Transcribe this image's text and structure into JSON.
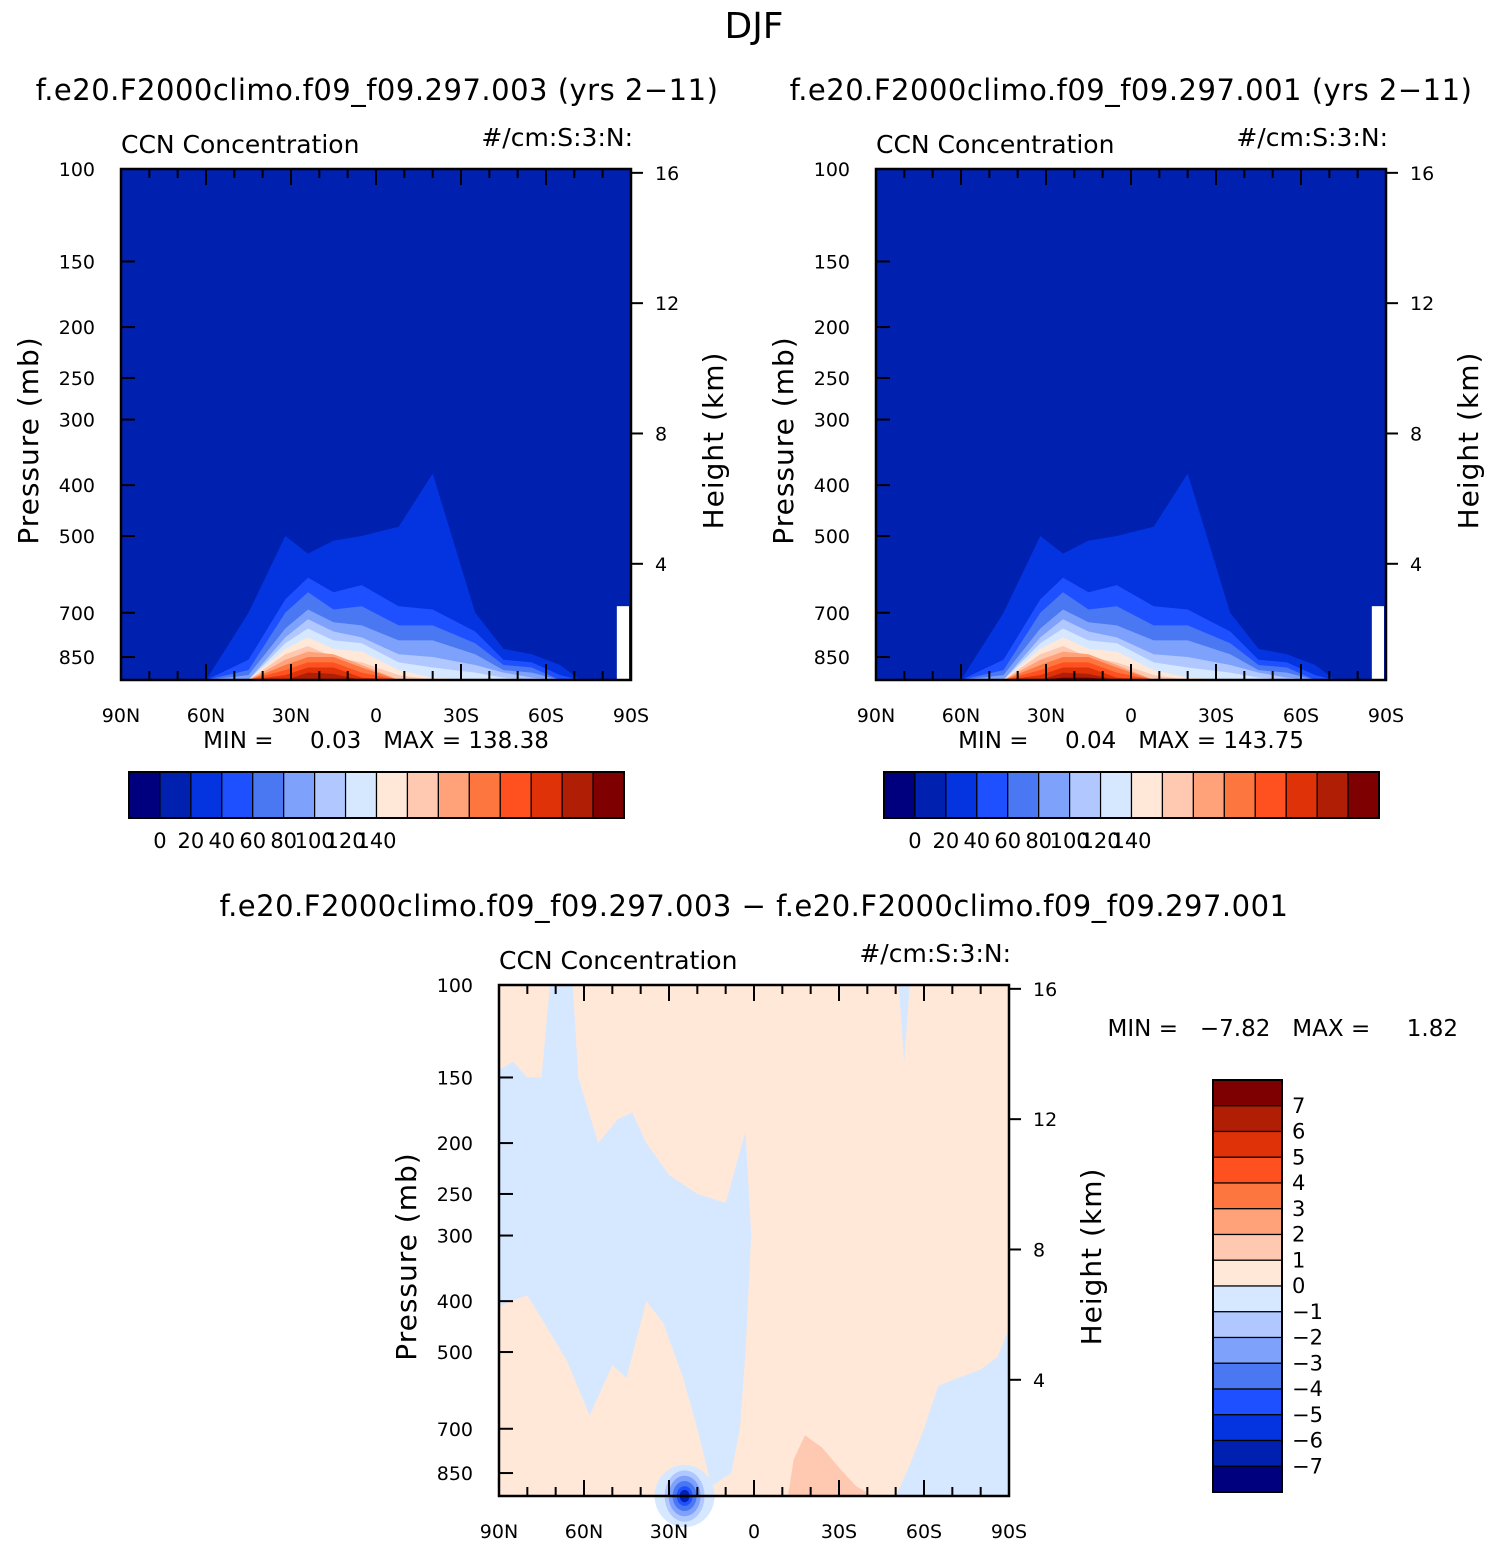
{
  "figure": {
    "title": "DJF",
    "diff_title": "f.e20.F2000climo.f09_f09.297.003 − f.e20.F2000climo.f09_f09.297.001"
  },
  "panels": {
    "left": {
      "case": "f.e20.F2000climo.f09_f09.297.003 (yrs 2−11)",
      "variable": "CCN Concentration",
      "units": "#/cm:S:3:N:",
      "stats": "MIN =     0.03   MAX = 138.38"
    },
    "right": {
      "case": "f.e20.F2000climo.f09_f09.297.001 (yrs 2−11)",
      "variable": "CCN Concentration",
      "units": "#/cm:S:3:N:",
      "stats": "MIN =     0.04   MAX = 143.75"
    },
    "diff": {
      "variable": "CCN Concentration",
      "units": "#/cm:S:3:N:",
      "stats": "MIN =   −7.82   MAX =     1.82"
    }
  },
  "colors": {
    "abs_palette": [
      "#00007f",
      "#0021b0",
      "#0433e0",
      "#1f50ff",
      "#4a78f2",
      "#7ea2fb",
      "#b0c8ff",
      "#d6e8ff",
      "#ffe8d8",
      "#ffc8b0",
      "#ffa27a",
      "#fd7640",
      "#ff5020",
      "#e03208",
      "#b01e06",
      "#7f0000"
    ],
    "diff_palette": [
      "#00007f",
      "#0021b0",
      "#0433e0",
      "#1f50ff",
      "#4a78f2",
      "#7ea2fb",
      "#b0c8ff",
      "#d6e8ff",
      "#ffe8d8",
      "#ffc8b0",
      "#ffa27a",
      "#fd7640",
      "#ff5020",
      "#e03208",
      "#b01e06",
      "#7f0000"
    ]
  },
  "chart_data": [
    {
      "type": "heatmap",
      "panel": "left",
      "xlabel": "",
      "ylabel": "Pressure (mb)",
      "y2label": "Height (km)",
      "x_ticks": [
        "90N",
        "60N",
        "30N",
        "0",
        "30S",
        "60S",
        "90S"
      ],
      "x_range": [
        90,
        -90
      ],
      "y_ticks": [
        100,
        150,
        200,
        250,
        300,
        400,
        500,
        700,
        850
      ],
      "y_range": [
        100,
        940
      ],
      "y_scale": "log",
      "y2_ticks": [
        16,
        12,
        8,
        4
      ],
      "colorbar_labels": [
        "0",
        "20",
        "40",
        "60",
        "80",
        "100",
        "120",
        "140"
      ],
      "min": 0.03,
      "max": 138.38,
      "contour_levels": [
        10,
        20,
        30,
        40,
        50,
        60,
        70,
        80,
        90,
        100,
        110,
        120,
        130
      ],
      "lat": [
        60,
        45,
        32,
        24,
        15,
        5,
        -8,
        -20,
        -35,
        -45,
        -55,
        -65,
        -72
      ],
      "contour_top_p": {
        "10": [
          940,
          700,
          500,
          540,
          510,
          500,
          480,
          380,
          700,
          820,
          840,
          880,
          940
        ],
        "20": [
          940,
          860,
          660,
          600,
          640,
          620,
          680,
          690,
          760,
          860,
          870,
          920,
          940
        ],
        "30": [
          940,
          900,
          700,
          640,
          690,
          680,
          740,
          740,
          800,
          880,
          890,
          940,
          940
        ],
        "40": [
          940,
          920,
          750,
          690,
          730,
          740,
          790,
          790,
          840,
          900,
          910,
          940,
          940
        ],
        "50": [
          940,
          940,
          780,
          720,
          760,
          780,
          840,
          850,
          880,
          910,
          930,
          940,
          940
        ],
        "60": [
          940,
          940,
          800,
          750,
          790,
          800,
          870,
          890,
          910,
          930,
          940,
          940,
          940
        ],
        "70": [
          940,
          940,
          820,
          780,
          820,
          830,
          900,
          930,
          940,
          940,
          940,
          940,
          940
        ],
        "80": [
          940,
          940,
          840,
          810,
          850,
          870,
          920,
          940,
          940,
          940,
          940,
          940,
          940
        ],
        "90": [
          940,
          940,
          860,
          830,
          840,
          880,
          940,
          940,
          940,
          940,
          940,
          940,
          940
        ],
        "100": [
          940,
          940,
          880,
          850,
          850,
          890,
          940,
          940,
          940,
          940,
          940,
          940,
          940
        ],
        "110": [
          940,
          940,
          900,
          870,
          870,
          910,
          940,
          940,
          940,
          940,
          940,
          940,
          940
        ],
        "120": [
          940,
          940,
          920,
          890,
          890,
          930,
          940,
          940,
          940,
          940,
          940,
          940,
          940
        ],
        "130": [
          940,
          940,
          940,
          910,
          915,
          940,
          940,
          940,
          940,
          940,
          940,
          940,
          940
        ]
      },
      "missing_region": "near 90S below 700 mb"
    },
    {
      "type": "heatmap",
      "panel": "right",
      "xlabel": "",
      "ylabel": "Pressure (mb)",
      "y2label": "Height (km)",
      "x_ticks": [
        "90N",
        "60N",
        "30N",
        "0",
        "30S",
        "60S",
        "90S"
      ],
      "x_range": [
        90,
        -90
      ],
      "y_ticks": [
        100,
        150,
        200,
        250,
        300,
        400,
        500,
        700,
        850
      ],
      "y_range": [
        100,
        940
      ],
      "y_scale": "log",
      "y2_ticks": [
        16,
        12,
        8,
        4
      ],
      "colorbar_labels": [
        "0",
        "20",
        "40",
        "60",
        "80",
        "100",
        "120",
        "140"
      ],
      "min": 0.04,
      "max": 143.75,
      "contour_levels": [
        10,
        20,
        30,
        40,
        50,
        60,
        70,
        80,
        90,
        100,
        110,
        120,
        130,
        140
      ],
      "lat": [
        60,
        45,
        32,
        24,
        15,
        5,
        -8,
        -20,
        -35,
        -45,
        -55,
        -65,
        -72
      ],
      "contour_top_p": {
        "10": [
          940,
          700,
          500,
          540,
          510,
          500,
          480,
          380,
          700,
          820,
          840,
          880,
          940
        ],
        "20": [
          940,
          860,
          660,
          600,
          640,
          620,
          680,
          690,
          760,
          860,
          870,
          920,
          940
        ],
        "30": [
          940,
          900,
          700,
          640,
          690,
          680,
          740,
          740,
          800,
          880,
          890,
          940,
          940
        ],
        "40": [
          940,
          920,
          750,
          690,
          730,
          740,
          790,
          790,
          840,
          900,
          910,
          940,
          940
        ],
        "50": [
          940,
          940,
          780,
          720,
          760,
          780,
          840,
          850,
          880,
          910,
          930,
          940,
          940
        ],
        "60": [
          940,
          940,
          800,
          750,
          790,
          800,
          870,
          890,
          910,
          930,
          940,
          940,
          940
        ],
        "70": [
          940,
          940,
          820,
          780,
          820,
          830,
          900,
          930,
          940,
          940,
          940,
          940,
          940
        ],
        "80": [
          940,
          940,
          840,
          810,
          850,
          870,
          920,
          940,
          940,
          940,
          940,
          940,
          940
        ],
        "90": [
          940,
          940,
          860,
          830,
          840,
          880,
          940,
          940,
          940,
          940,
          940,
          940,
          940
        ],
        "100": [
          940,
          940,
          880,
          850,
          850,
          890,
          940,
          940,
          940,
          940,
          940,
          940,
          940
        ],
        "110": [
          940,
          940,
          900,
          870,
          870,
          910,
          940,
          940,
          940,
          940,
          940,
          940,
          940
        ],
        "120": [
          940,
          940,
          920,
          890,
          890,
          930,
          940,
          940,
          940,
          940,
          940,
          940,
          940
        ],
        "130": [
          940,
          940,
          940,
          910,
          915,
          940,
          940,
          940,
          940,
          940,
          940,
          940,
          940
        ],
        "140": [
          940,
          940,
          940,
          930,
          930,
          940,
          940,
          940,
          940,
          940,
          940,
          940,
          940
        ]
      },
      "missing_region": "near 90S below 700 mb"
    },
    {
      "type": "heatmap",
      "panel": "diff",
      "xlabel": "",
      "ylabel": "Pressure (mb)",
      "y2label": "Height (km)",
      "x_ticks": [
        "90N",
        "60N",
        "30N",
        "0",
        "30S",
        "60S",
        "90S"
      ],
      "x_range": [
        90,
        -90
      ],
      "y_ticks": [
        100,
        150,
        200,
        250,
        300,
        400,
        500,
        700,
        850
      ],
      "y_range": [
        100,
        940
      ],
      "y_scale": "log",
      "y2_ticks": [
        16,
        12,
        8,
        4
      ],
      "colorbar_labels": [
        "7",
        "6",
        "5",
        "4",
        "3",
        "2",
        "1",
        "0",
        "−1",
        "−2",
        "−3",
        "−4",
        "−5",
        "−6",
        "−7"
      ],
      "min": -7.82,
      "max": 1.82,
      "background_class": "0 to 1",
      "regions": [
        {
          "class": "-1 to 0",
          "description": "mid/upper troposphere 90N to ~5S, upper level near 60S, lower level 50S-90S"
        },
        {
          "class": "1 to 2",
          "description": "near surface 5S-45S and scattered near 10N-35N"
        },
        {
          "class": "-8 to -2",
          "description": "surface minimum near 25N-30N"
        }
      ]
    }
  ]
}
